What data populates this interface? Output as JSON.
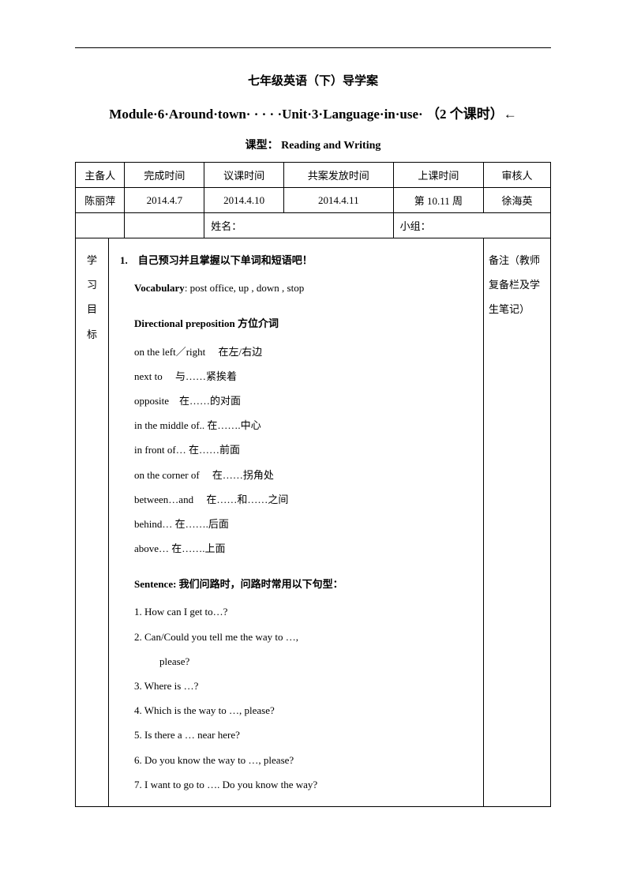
{
  "header": {
    "title": "七年级英语（下）导学案",
    "module_title": "Module·6·Around·town· · · · ·Unit·3·Language·in·use· （2 个课时）←",
    "course_type_label": "课型：",
    "course_type_value": "Reading and Writing"
  },
  "table_header": {
    "col1": "主备人",
    "col2": "完成时间",
    "col3": "议课时间",
    "col4": "共案发放时间",
    "col5": "上课时间",
    "col6": "审核人"
  },
  "table_row1": {
    "col1": "陈丽萍",
    "col2": "2014.4.7",
    "col3": "2014.4.10",
    "col4": "2014.4.11",
    "col5": "第 10.11 周",
    "col6": "徐海英"
  },
  "table_row2": {
    "name_label": "姓名：",
    "group_label": "小组："
  },
  "vertical_label": {
    "c1": "学",
    "c2": "习",
    "c3": "目",
    "c4": "标"
  },
  "content": {
    "heading1": "1.　自己预习并且掌握以下单词和短语吧！",
    "vocab_label": "Vocabulary",
    "vocab_text": ": post office, up , down , stop",
    "heading2": "Directional preposition 方位介词",
    "lines": [
      "on the left／right　  在左/右边",
      "next to　 与……紧挨着",
      "opposite　在……的对面",
      "in the middle of..  在…….中心",
      "in front of…  在……前面",
      "on the corner of　 在……拐角处",
      "between…and　  在……和……之间",
      "behind…  在…….后面",
      "above…  在…….上面"
    ],
    "sentence_heading": "Sentence:  我们问路时，问路时常用以下句型：",
    "sentences": [
      "1. How can I get to…?",
      "2. Can/Could you tell me the way to …,",
      "please?",
      "3. Where is …?",
      "4. Which is the way to …, please?",
      "5. Is there a … near here?",
      "6. Do you know the way to …, please?",
      "7. I want to go to …. Do you know the way?"
    ]
  },
  "notes": {
    "line1": "备注（教师",
    "line2": "复备栏及学",
    "line3": "生笔记）"
  }
}
